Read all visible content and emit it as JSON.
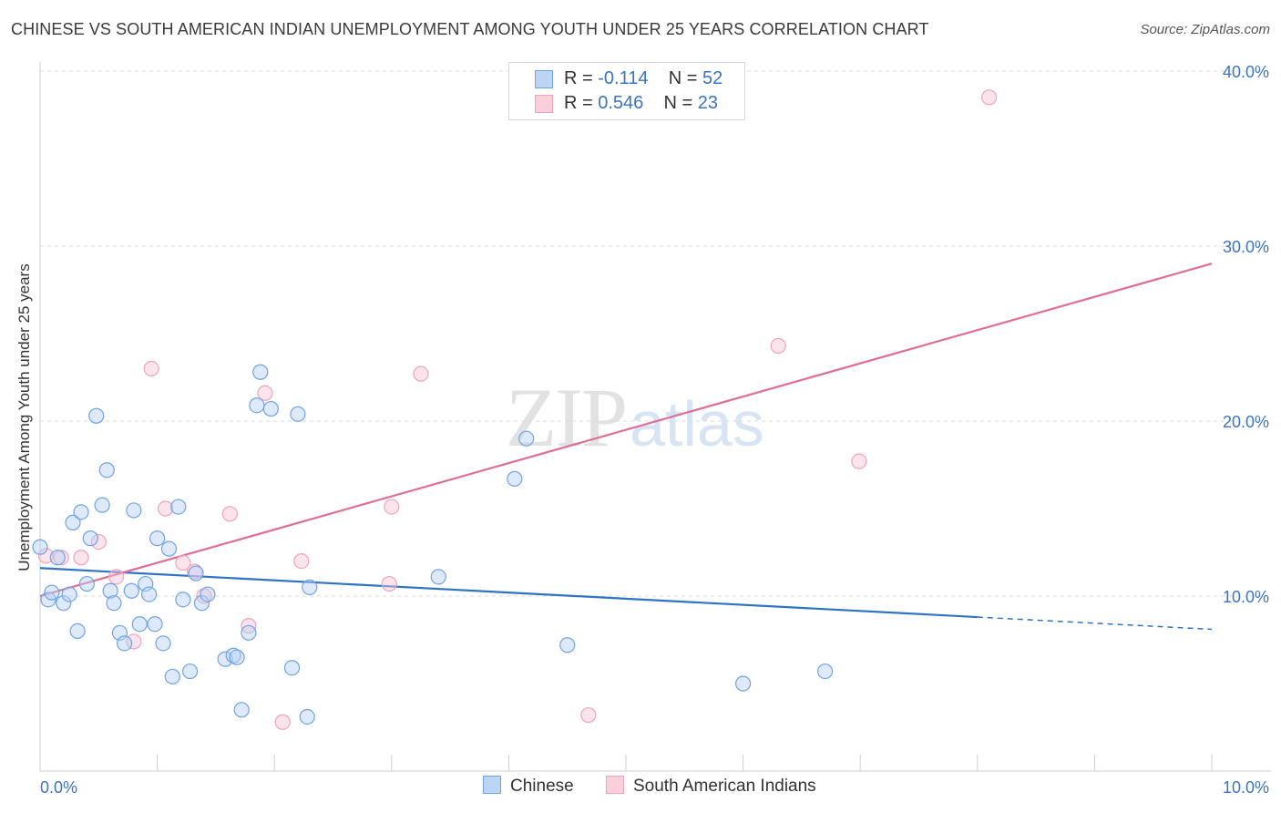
{
  "title": "CHINESE VS SOUTH AMERICAN INDIAN UNEMPLOYMENT AMONG YOUTH UNDER 25 YEARS CORRELATION CHART",
  "source": "Source: ZipAtlas.com",
  "watermark": {
    "zip": "ZIP",
    "atlas": "atlas"
  },
  "legend_top": {
    "chinese": {
      "r_label": "R =",
      "r_value": "-0.114",
      "n_label": "N =",
      "n_value": "52"
    },
    "south_american_indian": {
      "r_label": "R =",
      "r_value": "0.546",
      "n_label": "N =",
      "n_value": "23"
    }
  },
  "bottom_legend": {
    "chinese": "Chinese",
    "south_american_indian": "South American Indians"
  },
  "chart_data": {
    "type": "scatter",
    "title": "CHINESE VS SOUTH AMERICAN INDIAN UNEMPLOYMENT AMONG YOUTH UNDER 25 YEARS CORRELATION CHART",
    "xlabel": "",
    "ylabel": "Unemployment Among Youth under 25 years",
    "xlim": [
      0,
      10
    ],
    "ylim": [
      0,
      40
    ],
    "x_tick_labels": [
      {
        "value": 0,
        "label": "0.0%"
      },
      {
        "value": 10,
        "label": "10.0%"
      }
    ],
    "y_tick_labels": [
      {
        "value": 10,
        "label": "10.0%"
      },
      {
        "value": 20,
        "label": "20.0%"
      },
      {
        "value": 30,
        "label": "30.0%"
      },
      {
        "value": 40,
        "label": "40.0%"
      }
    ],
    "grid": "horizontal dashed",
    "legend_position": "top-center",
    "colors": {
      "chinese": "#6fa3e8",
      "south_american_indian": "#f0a3bc",
      "chinese_line": "#2f72c9",
      "sai_line": "#e06d98",
      "tick_label": "#3b73c6"
    },
    "series": [
      {
        "name": "Chinese",
        "r": -0.114,
        "n": 52,
        "trend": {
          "x0": 0,
          "y0": 11.6,
          "x1": 8,
          "y1": 8.8,
          "dashed_to_x": 10,
          "dashed_to_y": 8.1
        },
        "points": [
          [
            0.0,
            12.8
          ],
          [
            0.07,
            9.8
          ],
          [
            0.1,
            10.2
          ],
          [
            0.15,
            12.2
          ],
          [
            0.2,
            9.6
          ],
          [
            0.25,
            10.1
          ],
          [
            0.28,
            14.2
          ],
          [
            0.32,
            8.0
          ],
          [
            0.35,
            14.8
          ],
          [
            0.4,
            10.7
          ],
          [
            0.43,
            13.3
          ],
          [
            0.48,
            20.3
          ],
          [
            0.53,
            15.2
          ],
          [
            0.57,
            17.2
          ],
          [
            0.6,
            10.3
          ],
          [
            0.63,
            9.6
          ],
          [
            0.68,
            7.9
          ],
          [
            0.72,
            7.3
          ],
          [
            0.78,
            10.3
          ],
          [
            0.8,
            14.9
          ],
          [
            0.85,
            8.4
          ],
          [
            0.9,
            10.7
          ],
          [
            0.93,
            10.1
          ],
          [
            0.98,
            8.4
          ],
          [
            1.0,
            13.3
          ],
          [
            1.05,
            7.3
          ],
          [
            1.1,
            12.7
          ],
          [
            1.13,
            5.4
          ],
          [
            1.18,
            15.1
          ],
          [
            1.22,
            9.8
          ],
          [
            1.28,
            5.7
          ],
          [
            1.33,
            11.3
          ],
          [
            1.38,
            9.6
          ],
          [
            1.43,
            10.1
          ],
          [
            1.58,
            6.4
          ],
          [
            1.65,
            6.6
          ],
          [
            1.68,
            6.5
          ],
          [
            1.72,
            3.5
          ],
          [
            1.78,
            7.9
          ],
          [
            1.85,
            20.9
          ],
          [
            1.88,
            22.8
          ],
          [
            1.97,
            20.7
          ],
          [
            2.15,
            5.9
          ],
          [
            2.2,
            20.4
          ],
          [
            2.28,
            3.1
          ],
          [
            2.3,
            10.5
          ],
          [
            3.4,
            11.1
          ],
          [
            4.05,
            16.7
          ],
          [
            4.15,
            19.0
          ],
          [
            4.5,
            7.2
          ],
          [
            6.0,
            5.0
          ],
          [
            6.7,
            5.7
          ]
        ]
      },
      {
        "name": "South American Indians",
        "r": 0.546,
        "n": 23,
        "trend": {
          "x0": 0,
          "y0": 10.0,
          "x1": 10,
          "y1": 29.0
        },
        "points": [
          [
            0.05,
            12.3
          ],
          [
            0.18,
            12.2
          ],
          [
            0.35,
            12.2
          ],
          [
            0.5,
            13.1
          ],
          [
            0.65,
            11.1
          ],
          [
            0.8,
            7.4
          ],
          [
            0.95,
            23.0
          ],
          [
            1.07,
            15.0
          ],
          [
            1.22,
            11.9
          ],
          [
            1.32,
            11.4
          ],
          [
            1.4,
            10.0
          ],
          [
            1.62,
            14.7
          ],
          [
            1.78,
            8.3
          ],
          [
            1.92,
            21.6
          ],
          [
            2.07,
            2.8
          ],
          [
            2.23,
            12.0
          ],
          [
            2.98,
            10.7
          ],
          [
            3.0,
            15.1
          ],
          [
            3.25,
            22.7
          ],
          [
            4.68,
            3.2
          ],
          [
            6.3,
            24.3
          ],
          [
            6.99,
            17.7
          ],
          [
            8.1,
            38.5
          ]
        ]
      }
    ]
  }
}
